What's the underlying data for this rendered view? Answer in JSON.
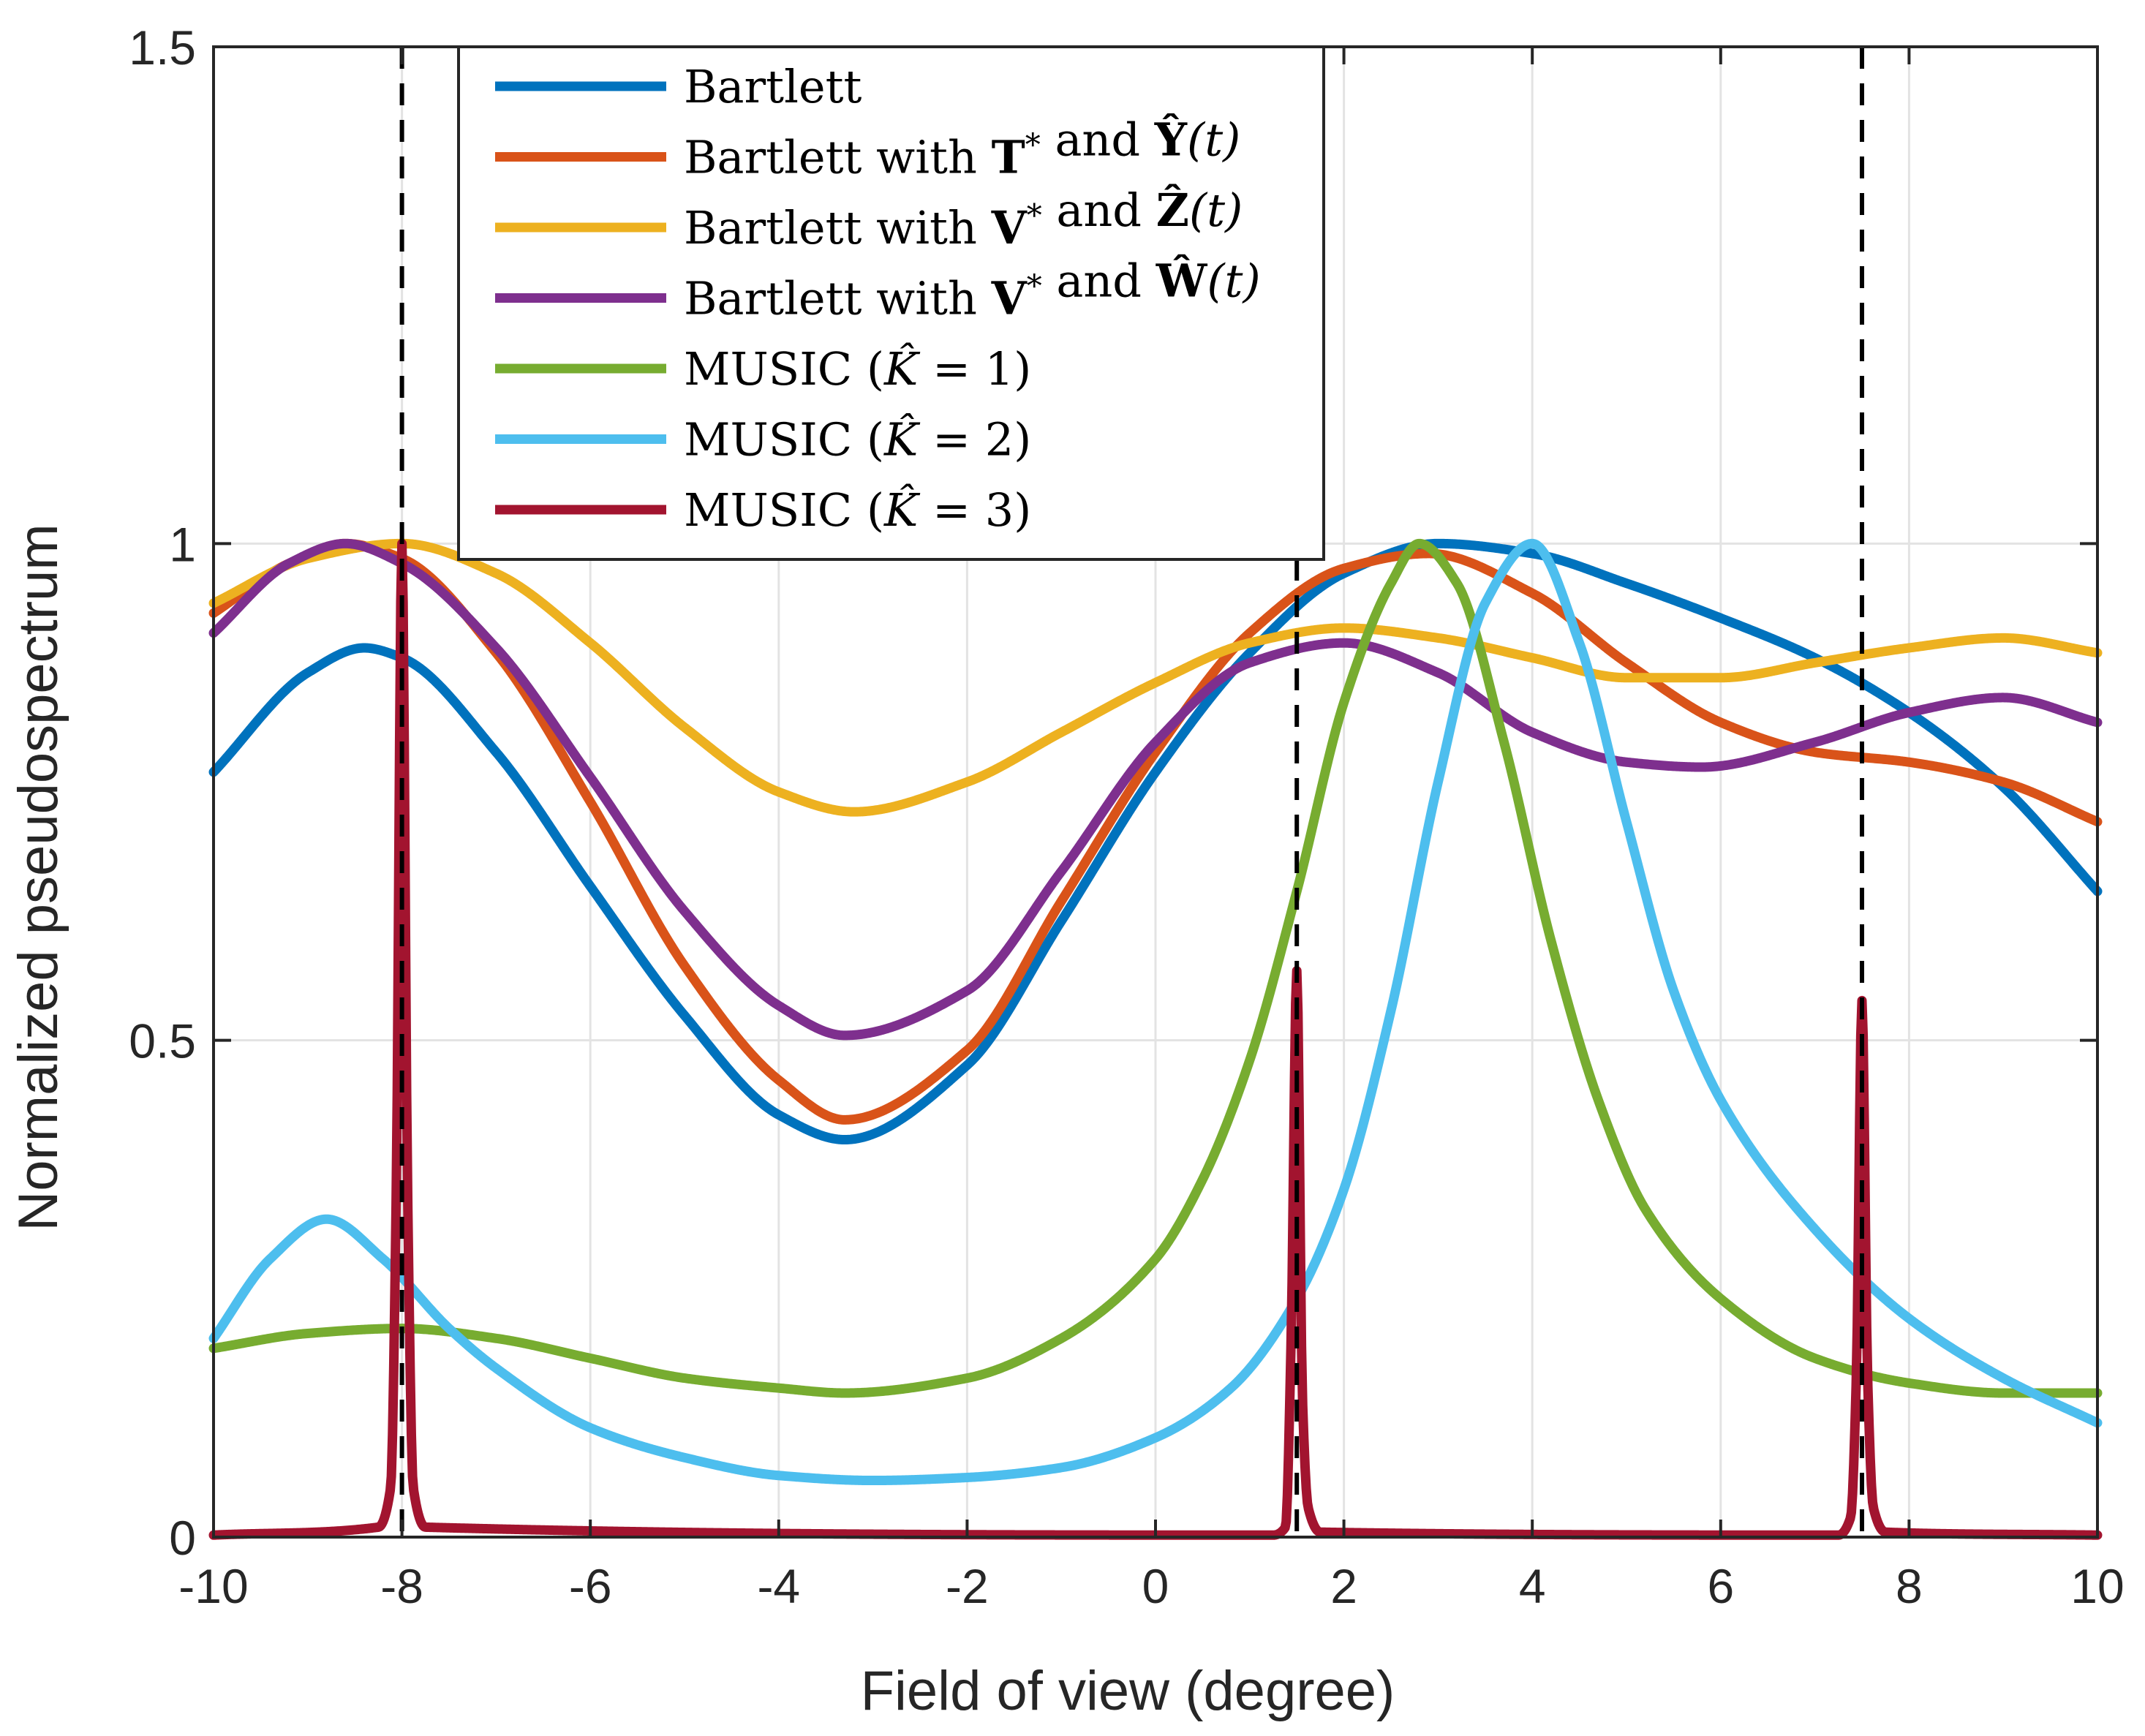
{
  "chart_data": {
    "type": "line",
    "xlabel": "Field of view (degree)",
    "ylabel": "Normalized pseudospectrum",
    "xlim": [
      -10,
      10
    ],
    "ylim": [
      0,
      1.5
    ],
    "xticks": [
      -10,
      -8,
      -6,
      -4,
      -2,
      0,
      2,
      4,
      6,
      8,
      10
    ],
    "yticks": [
      0,
      0.5,
      1,
      1.5
    ],
    "xtick_labels": [
      "-10",
      "-8",
      "-6",
      "-4",
      "-2",
      "0",
      "2",
      "4",
      "6",
      "8",
      "10"
    ],
    "ytick_labels": [
      "0",
      "0.5",
      "1",
      "1.5"
    ],
    "grid": true,
    "legend_position": "top-center",
    "true_doas": [
      -8,
      1.5,
      7.5
    ],
    "series": [
      {
        "name": "Bartlett",
        "legend_parts": [
          "Bartlett"
        ],
        "color": "#0072BD",
        "x": [
          -10,
          -9,
          -8.4,
          -8,
          -7,
          -6,
          -5,
          -4,
          -3.3,
          -2,
          -1,
          0,
          1,
          2,
          3,
          4,
          5,
          6,
          7,
          8,
          9,
          10
        ],
        "y": [
          0.77,
          0.87,
          0.895,
          0.885,
          0.79,
          0.655,
          0.525,
          0.425,
          0.4,
          0.475,
          0.62,
          0.77,
          0.89,
          0.97,
          1.0,
          0.99,
          0.96,
          0.925,
          0.885,
          0.83,
          0.755,
          0.65
        ]
      },
      {
        "name": "Bartlett with T* and Ŷ(t)",
        "legend_parts": [
          "Bartlett with ",
          "T",
          "*",
          " and ",
          "Ŷ",
          "(t)"
        ],
        "color": "#D95319",
        "x": [
          -10,
          -9.2,
          -8.6,
          -8,
          -7,
          -6,
          -5,
          -4,
          -3.3,
          -2,
          -1,
          0,
          1,
          2,
          2.9,
          4,
          5,
          6,
          7,
          8,
          9,
          10
        ],
        "y": [
          0.93,
          0.98,
          1.0,
          0.985,
          0.89,
          0.74,
          0.575,
          0.46,
          0.42,
          0.49,
          0.64,
          0.79,
          0.91,
          0.975,
          0.99,
          0.95,
          0.88,
          0.82,
          0.79,
          0.78,
          0.76,
          0.72
        ]
      },
      {
        "name": "Bartlett with V* and Ẑ(t)",
        "legend_parts": [
          "Bartlett with ",
          "V",
          "*",
          " and ",
          "Ẑ",
          "(t)"
        ],
        "color": "#EDB120",
        "x": [
          -10,
          -9,
          -8,
          -7,
          -6,
          -5,
          -4,
          -3.2,
          -2,
          -1,
          0,
          1,
          2,
          3,
          4,
          5,
          6,
          7,
          8,
          9,
          10
        ],
        "y": [
          0.94,
          0.985,
          1.0,
          0.97,
          0.9,
          0.815,
          0.75,
          0.73,
          0.76,
          0.81,
          0.86,
          0.9,
          0.915,
          0.905,
          0.885,
          0.865,
          0.865,
          0.88,
          0.895,
          0.905,
          0.89
        ]
      },
      {
        "name": "Bartlett with V* and Ŵ(t)",
        "legend_parts": [
          "Bartlett with ",
          "V",
          "*",
          " and ",
          "Ŵ",
          "(t)"
        ],
        "color": "#7E2F8E",
        "x": [
          -10,
          -9.2,
          -8.6,
          -8,
          -7,
          -6,
          -5,
          -4,
          -3.3,
          -2,
          -1,
          0,
          1,
          2,
          3,
          4,
          5,
          5.8,
          7,
          8,
          9,
          10
        ],
        "y": [
          0.91,
          0.98,
          1.0,
          0.98,
          0.895,
          0.765,
          0.63,
          0.535,
          0.505,
          0.55,
          0.67,
          0.8,
          0.88,
          0.9,
          0.87,
          0.81,
          0.78,
          0.775,
          0.8,
          0.83,
          0.845,
          0.82
        ]
      },
      {
        "name": "MUSIC (K̂ = 1)",
        "legend_parts": [
          "MUSIC (",
          "K̂",
          " = 1)"
        ],
        "color": "#77AC30",
        "x": [
          -10,
          -9,
          -8,
          -7,
          -6,
          -5,
          -4,
          -3.3,
          -2,
          -1,
          0,
          0.5,
          1,
          1.5,
          2,
          2.5,
          2.8,
          3.2,
          3.7,
          4.2,
          4.7,
          5.2,
          6,
          7,
          8,
          9,
          10
        ],
        "y": [
          0.19,
          0.205,
          0.21,
          0.2,
          0.18,
          0.16,
          0.15,
          0.145,
          0.16,
          0.2,
          0.28,
          0.36,
          0.48,
          0.65,
          0.84,
          0.96,
          1.0,
          0.96,
          0.8,
          0.6,
          0.44,
          0.33,
          0.24,
          0.18,
          0.155,
          0.145,
          0.145
        ]
      },
      {
        "name": "MUSIC (K̂ = 2)",
        "legend_parts": [
          "MUSIC (",
          "K̂",
          " = 2)"
        ],
        "color": "#4DBEEE",
        "x": [
          -10,
          -9.4,
          -8.8,
          -8.2,
          -7.5,
          -7,
          -6,
          -5,
          -4,
          -3,
          -2,
          -1,
          0,
          0.8,
          1.5,
          2,
          2.5,
          3,
          3.5,
          4,
          4.5,
          5,
          5.5,
          6,
          7,
          8,
          9,
          10
        ],
        "y": [
          0.2,
          0.28,
          0.32,
          0.28,
          0.21,
          0.17,
          0.11,
          0.08,
          0.062,
          0.057,
          0.06,
          0.07,
          0.1,
          0.15,
          0.24,
          0.35,
          0.53,
          0.76,
          0.94,
          1.0,
          0.9,
          0.72,
          0.55,
          0.44,
          0.31,
          0.22,
          0.16,
          0.115
        ]
      },
      {
        "name": "MUSIC (K̂ = 3)",
        "legend_parts": [
          "MUSIC (",
          "K̂",
          " = 3)"
        ],
        "color": "#A2142F",
        "x": [
          -10,
          -8.25,
          -8.12,
          -8.06,
          -8.0,
          -7.94,
          -7.88,
          -7.75,
          1.25,
          1.38,
          1.44,
          1.5,
          1.56,
          1.62,
          1.75,
          7.25,
          7.38,
          7.44,
          7.5,
          7.56,
          7.62,
          7.75,
          10
        ],
        "y": [
          0.002,
          0.01,
          0.05,
          0.35,
          1.0,
          0.35,
          0.05,
          0.01,
          0.002,
          0.01,
          0.2,
          0.57,
          0.14,
          0.03,
          0.005,
          0.002,
          0.02,
          0.16,
          0.54,
          0.16,
          0.03,
          0.005,
          0.002
        ]
      }
    ]
  }
}
